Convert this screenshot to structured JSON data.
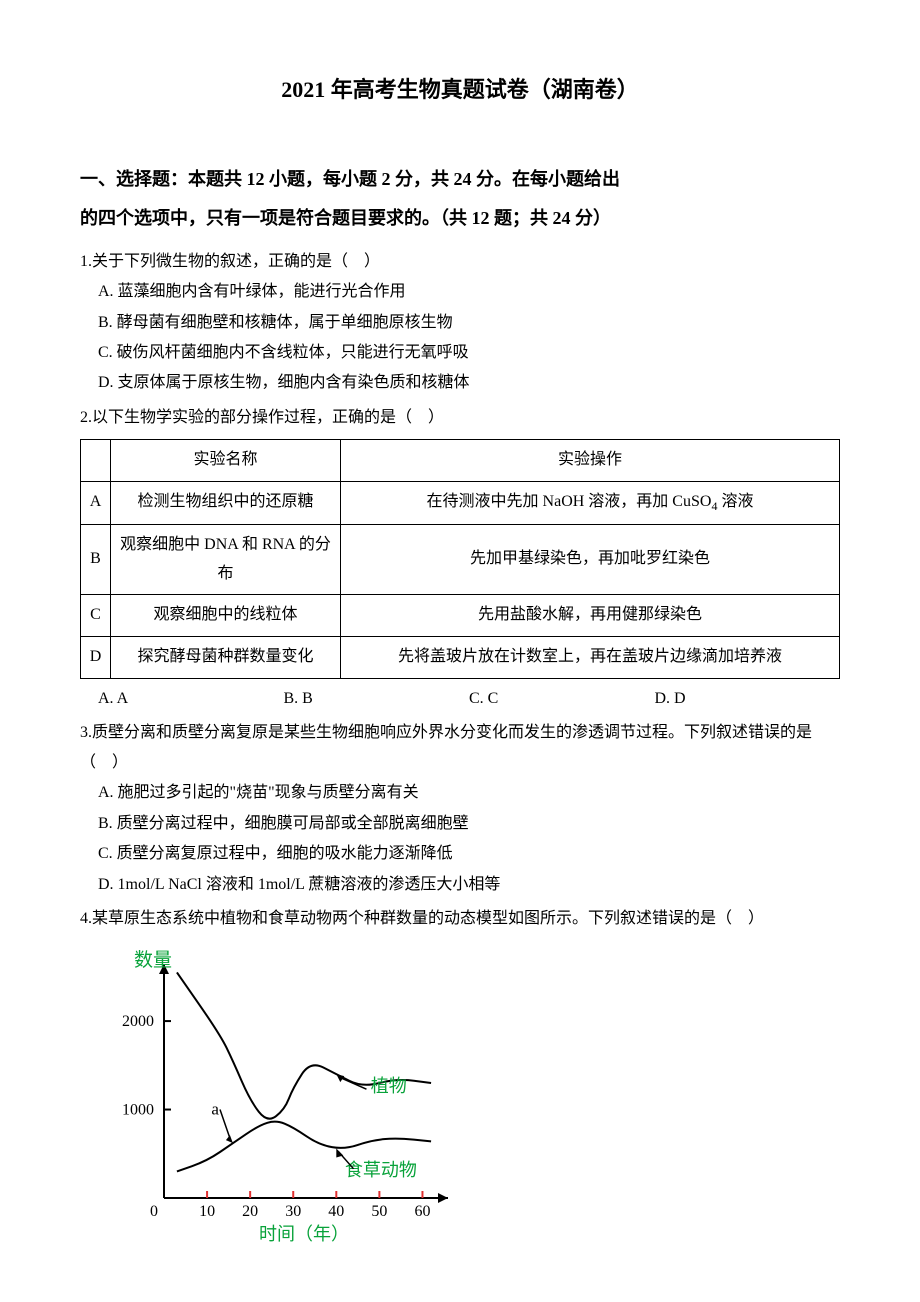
{
  "title": "2021 年高考生物真题试卷（湖南卷）",
  "section_heading_line1": "一、选择题：本题共 12 小题，每小题 2 分，共 24 分。在每小题给出",
  "section_heading_line2": "的四个选项中，只有一项是符合题目要求的。（共 12 题；共 24 分）",
  "q1": {
    "stem": "1.关于下列微生物的叙述，正确的是（　）",
    "optA": "A. 蓝藻细胞内含有叶绿体，能进行光合作用",
    "optB": "B. 酵母菌有细胞壁和核糖体，属于单细胞原核生物",
    "optC": "C. 破伤风杆菌细胞内不含线粒体，只能进行无氧呼吸",
    "optD": "D. 支原体属于原核生物，细胞内含有染色质和核糖体"
  },
  "q2": {
    "stem": "2.以下生物学实验的部分操作过程，正确的是（　）",
    "table": {
      "header_name": "实验名称",
      "header_op": "实验操作",
      "rows": [
        {
          "label": "A",
          "name": "检测生物组织中的还原糖",
          "op": "在待测液中先加 NaOH 溶液，再加 CuSO",
          "sub": "4",
          "op_tail": " 溶液"
        },
        {
          "label": "B",
          "name": "观察细胞中 DNA 和 RNA 的分布",
          "op": "先加甲基绿染色，再加吡罗红染色",
          "sub": "",
          "op_tail": ""
        },
        {
          "label": "C",
          "name": "观察细胞中的线粒体",
          "op": "先用盐酸水解，再用健那绿染色",
          "sub": "",
          "op_tail": ""
        },
        {
          "label": "D",
          "name": "探究酵母菌种群数量变化",
          "op": "先将盖玻片放在计数室上，再在盖玻片边缘滴加培养液",
          "sub": "",
          "op_tail": ""
        }
      ]
    },
    "ansA": "A. A",
    "ansB": "B. B",
    "ansC": "C. C",
    "ansD": "D. D"
  },
  "q3": {
    "stem_line1": "3.质壁分离和质壁分离复原是某些生物细胞响应外界水分变化而发生的渗透调节过程。下列叙述错误的是",
    "stem_line2": "（　）",
    "optA": "A. 施肥过多引起的\"烧苗\"现象与质壁分离有关",
    "optB": "B. 质壁分离过程中，细胞膜可局部或全部脱离细胞壁",
    "optC": "C. 质壁分离复原过程中，细胞的吸水能力逐渐降低",
    "optD": "D. 1mol/L NaCl 溶液和 1mol/L 蔗糖溶液的渗透压大小相等"
  },
  "q4": {
    "stem": "4.某草原生态系统中植物和食草动物两个种群数量的动态模型如图所示。下列叙述错误的是（　）"
  },
  "chart": {
    "y_label": "数量",
    "x_label": "时间（年）",
    "y_label_color": "#08a23a",
    "x_label_color": "#08a23a",
    "y_ticks": [
      "1000",
      "2000"
    ],
    "x_ticks": [
      "10",
      "20",
      "30",
      "40",
      "50",
      "60"
    ],
    "label_plant": "植物",
    "label_herbivore": "食草动物",
    "label_a": "a",
    "axis_color": "#000000",
    "tick_color": "#e03030",
    "line_color": "#000000",
    "label_annot_color": "#08a23a",
    "bg_color": "#ffffff",
    "font_family": "SimSun",
    "axis_stroke_width": 2,
    "curve_stroke_width": 2,
    "x_range": [
      0,
      65
    ],
    "y_range": [
      0,
      2600
    ],
    "plant_series": [
      {
        "x": 3,
        "y": 2550
      },
      {
        "x": 13,
        "y": 1850
      },
      {
        "x": 16,
        "y": 1550
      },
      {
        "x": 20,
        "y": 1100
      },
      {
        "x": 24,
        "y": 850
      },
      {
        "x": 28,
        "y": 1000
      },
      {
        "x": 30,
        "y": 1250
      },
      {
        "x": 34,
        "y": 1550
      },
      {
        "x": 40,
        "y": 1400
      },
      {
        "x": 46,
        "y": 1250
      },
      {
        "x": 54,
        "y": 1350
      },
      {
        "x": 62,
        "y": 1300
      }
    ],
    "herbivore_series": [
      {
        "x": 3,
        "y": 300
      },
      {
        "x": 10,
        "y": 420
      },
      {
        "x": 16,
        "y": 620
      },
      {
        "x": 22,
        "y": 820
      },
      {
        "x": 26,
        "y": 880
      },
      {
        "x": 30,
        "y": 800
      },
      {
        "x": 36,
        "y": 600
      },
      {
        "x": 42,
        "y": 550
      },
      {
        "x": 48,
        "y": 650
      },
      {
        "x": 54,
        "y": 680
      },
      {
        "x": 62,
        "y": 640
      }
    ]
  }
}
